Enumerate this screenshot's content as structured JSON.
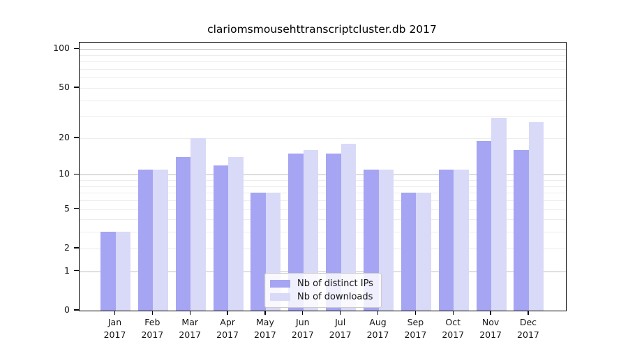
{
  "chart_data": {
    "type": "bar",
    "title": "clariomsmousehttranscriptcluster.db 2017",
    "categories": [
      "Jan",
      "Feb",
      "Mar",
      "Apr",
      "May",
      "Jun",
      "Jul",
      "Aug",
      "Sep",
      "Oct",
      "Nov",
      "Dec"
    ],
    "category_year": "2017",
    "series": [
      {
        "name": "Nb of distinct IPs",
        "key": "distinct-ips",
        "color": "#a5a5f3",
        "values": [
          3,
          11,
          14,
          12,
          7,
          15,
          15,
          11,
          7,
          11,
          19,
          16
        ]
      },
      {
        "name": "Nb of downloads",
        "key": "downloads",
        "color": "#d9d9f8",
        "values": [
          3,
          11,
          20,
          14,
          7,
          16,
          18,
          11,
          7,
          11,
          29,
          27
        ]
      }
    ],
    "yscale": "log1p",
    "ylim": [
      0,
      100
    ],
    "ytick_labels": [
      "100",
      "50",
      "20",
      "10",
      "5",
      "2",
      "1",
      "0"
    ],
    "ytick_values": [
      100,
      50,
      20,
      10,
      5,
      2,
      1,
      0
    ],
    "gridlines": {
      "major": [
        1,
        10,
        100
      ],
      "minor": [
        2,
        3,
        4,
        5,
        6,
        7,
        8,
        9,
        20,
        30,
        40,
        50,
        60,
        70,
        80,
        90
      ]
    },
    "legend": {
      "entries": [
        "Nb of distinct IPs",
        "Nb of downloads"
      ],
      "position": "lower center"
    },
    "colors": {
      "axis": "#000000",
      "text": "#151515",
      "major_grid": "#bdbdbd",
      "minor_grid": "#ededed",
      "legend_border": "#cccccc",
      "background": "#ffffff"
    },
    "grid": true
  }
}
